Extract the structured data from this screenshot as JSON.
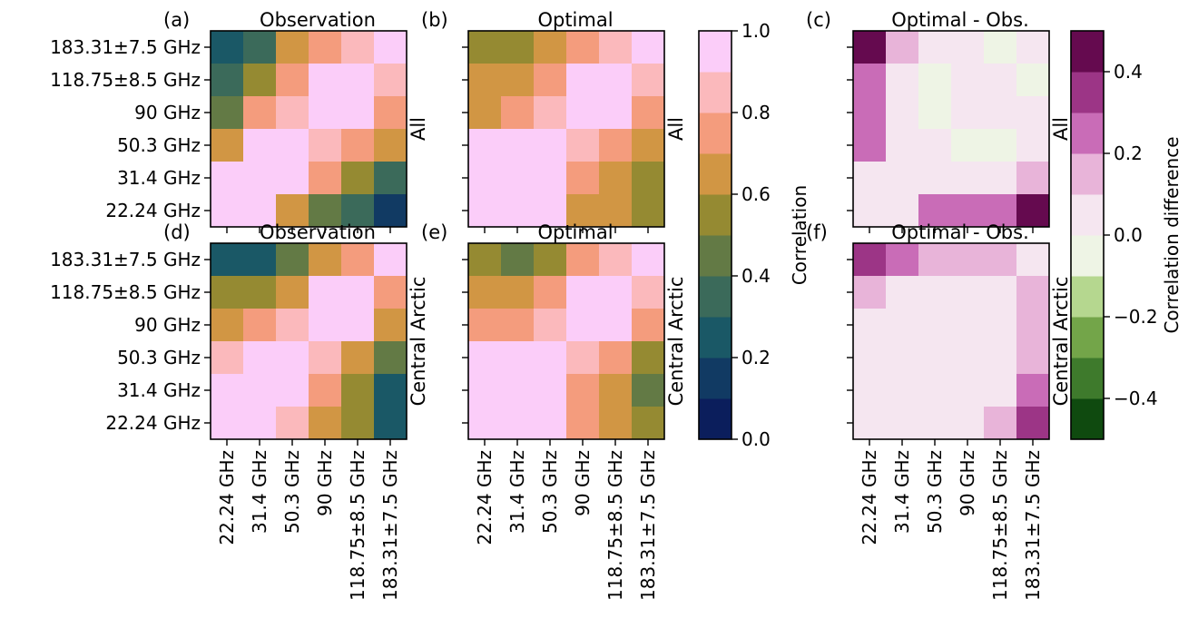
{
  "chart_data": {
    "type": "heatmap",
    "channels": [
      "22.24 GHz",
      "31.4 GHz",
      "50.3 GHz",
      "90 GHz",
      "118.75±8.5 GHz",
      "183.31±7.5 GHz"
    ],
    "panels": [
      {
        "id": "a",
        "letter": "(a)",
        "title": "Observation",
        "region": "All",
        "scale": "corr",
        "matrix": [
          [
            0.2,
            0.35,
            0.6,
            0.75,
            0.85,
            0.95
          ],
          [
            0.35,
            0.55,
            0.75,
            0.95,
            0.95,
            0.85
          ],
          [
            0.45,
            0.75,
            0.85,
            0.95,
            0.95,
            0.75
          ],
          [
            0.6,
            0.95,
            0.95,
            0.85,
            0.75,
            0.6
          ],
          [
            0.95,
            0.95,
            0.95,
            0.75,
            0.55,
            0.35
          ],
          [
            0.95,
            0.95,
            0.6,
            0.45,
            0.35,
            0.15
          ]
        ]
      },
      {
        "id": "b",
        "letter": "(b)",
        "title": "Optimal",
        "region": "All",
        "scale": "corr",
        "matrix": [
          [
            0.55,
            0.55,
            0.65,
            0.75,
            0.85,
            0.95
          ],
          [
            0.65,
            0.65,
            0.75,
            0.95,
            0.95,
            0.85
          ],
          [
            0.65,
            0.75,
            0.85,
            0.95,
            0.95,
            0.75
          ],
          [
            0.95,
            0.95,
            0.95,
            0.85,
            0.75,
            0.65
          ],
          [
            0.95,
            0.95,
            0.95,
            0.75,
            0.65,
            0.55
          ],
          [
            0.95,
            0.95,
            0.95,
            0.65,
            0.65,
            0.55
          ]
        ]
      },
      {
        "id": "c",
        "letter": "(c)",
        "title": "Optimal - Obs.",
        "region": "All",
        "scale": "diff",
        "matrix": [
          [
            0.45,
            0.15,
            0.05,
            0.05,
            -0.05,
            0.05
          ],
          [
            0.25,
            0.05,
            -0.05,
            0.05,
            0.05,
            -0.05
          ],
          [
            0.25,
            0.05,
            -0.05,
            0.05,
            0.05,
            0.05
          ],
          [
            0.25,
            0.05,
            0.05,
            -0.05,
            -0.05,
            0.05
          ],
          [
            0.05,
            0.05,
            0.05,
            0.05,
            0.05,
            0.15
          ],
          [
            0.05,
            0.05,
            0.25,
            0.25,
            0.25,
            0.45
          ]
        ]
      },
      {
        "id": "d",
        "letter": "(d)",
        "title": "Observation",
        "region": "Central Arctic",
        "scale": "corr",
        "matrix": [
          [
            0.25,
            0.25,
            0.45,
            0.65,
            0.75,
            0.95
          ],
          [
            0.55,
            0.55,
            0.65,
            0.95,
            0.95,
            0.75
          ],
          [
            0.65,
            0.75,
            0.85,
            0.95,
            0.95,
            0.65
          ],
          [
            0.85,
            0.95,
            0.95,
            0.85,
            0.65,
            0.45
          ],
          [
            0.95,
            0.95,
            0.95,
            0.75,
            0.55,
            0.25
          ],
          [
            0.95,
            0.95,
            0.85,
            0.65,
            0.55,
            0.25
          ]
        ]
      },
      {
        "id": "e",
        "letter": "(e)",
        "title": "Optimal",
        "region": "Central Arctic",
        "scale": "corr",
        "matrix": [
          [
            0.55,
            0.45,
            0.55,
            0.75,
            0.85,
            0.95
          ],
          [
            0.65,
            0.65,
            0.75,
            0.95,
            0.95,
            0.85
          ],
          [
            0.75,
            0.75,
            0.85,
            0.95,
            0.95,
            0.75
          ],
          [
            0.95,
            0.95,
            0.95,
            0.85,
            0.75,
            0.55
          ],
          [
            0.95,
            0.95,
            0.95,
            0.75,
            0.65,
            0.45
          ],
          [
            0.95,
            0.95,
            0.95,
            0.75,
            0.65,
            0.55
          ]
        ]
      },
      {
        "id": "f",
        "letter": "(f)",
        "title": "Optimal - Obs.",
        "region": "Central Arctic",
        "scale": "diff",
        "matrix": [
          [
            0.35,
            0.25,
            0.15,
            0.15,
            0.15,
            0.05
          ],
          [
            0.15,
            0.05,
            0.05,
            0.05,
            0.05,
            0.15
          ],
          [
            0.05,
            0.05,
            0.05,
            0.05,
            0.05,
            0.15
          ],
          [
            0.05,
            0.05,
            0.05,
            0.05,
            0.05,
            0.15
          ],
          [
            0.05,
            0.05,
            0.05,
            0.05,
            0.05,
            0.25
          ],
          [
            0.05,
            0.05,
            0.05,
            0.05,
            0.15,
            0.35
          ]
        ]
      }
    ],
    "colorbars": [
      {
        "id": "corr",
        "label": "Correlation",
        "range": [
          0,
          1
        ],
        "ticks": [
          0,
          0.2,
          0.4,
          0.6,
          0.8,
          1.0
        ],
        "tick_labels": [
          "0.0",
          "0.2",
          "0.4",
          "0.6",
          "0.8",
          "1.0"
        ],
        "colors": [
          "#0b1e5c",
          "#113a63",
          "#1a5866",
          "#3b6a5a",
          "#637a45",
          "#958a32",
          "#d19644",
          "#f49c7d",
          "#fbb9bc",
          "#fbcdf9"
        ]
      },
      {
        "id": "diff",
        "label": "Correlation difference",
        "range": [
          -0.5,
          0.5
        ],
        "ticks": [
          -0.4,
          -0.2,
          0,
          0.2,
          0.4
        ],
        "tick_labels": [
          "−0.4",
          "−0.2",
          "0.0",
          "0.2",
          "0.4"
        ],
        "colors": [
          "#0f4a0f",
          "#3e7a2c",
          "#73a549",
          "#b5d78f",
          "#eef4e5",
          "#f5e6f0",
          "#e8b4d9",
          "#c96cb7",
          "#9c3586",
          "#650a4f"
        ]
      }
    ]
  }
}
